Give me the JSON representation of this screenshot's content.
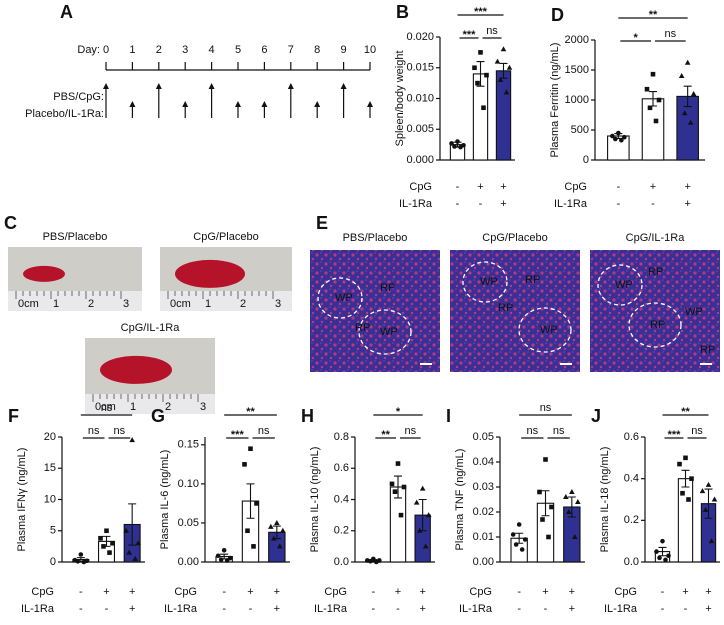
{
  "timeline": {
    "panel": "A",
    "day_label": "Day:",
    "days": [
      0,
      1,
      2,
      3,
      4,
      5,
      6,
      7,
      8,
      9,
      10
    ],
    "rows": [
      {
        "label": "PBS/CpG:",
        "days": [
          0,
          2,
          4,
          7,
          9
        ]
      },
      {
        "label": "Placebo/IL-1Ra:",
        "days": [
          1,
          3,
          5,
          6,
          8,
          10
        ]
      }
    ]
  },
  "photos": {
    "panel": "C",
    "ruler": [
      "0cm",
      "1",
      "2",
      "3"
    ],
    "captions": [
      "PBS/Placebo",
      "CpG/Placebo",
      "CpG/IL-1Ra"
    ]
  },
  "histology": {
    "panel": "E",
    "captions": [
      "PBS/Placebo",
      "CpG/Placebo",
      "CpG/IL-1Ra"
    ],
    "labels": [
      [
        "WP",
        "RP",
        "RP",
        "WP"
      ],
      [
        "WP",
        "RP",
        "RP",
        "WP"
      ],
      [
        "WP",
        "RP",
        "WP",
        "RP",
        "RP"
      ]
    ]
  },
  "chart_data": [
    {
      "type": "bar",
      "panel": "B",
      "ylabel": "Spleen/body weight",
      "ylim": [
        0,
        0.02
      ],
      "yticks": [
        {
          "value": 0,
          "label": "0.000"
        },
        {
          "value": 0.005,
          "label": "0.005"
        },
        {
          "value": 0.01,
          "label": "0.010"
        },
        {
          "value": 0.015,
          "label": "0.015"
        },
        {
          "value": 0.02,
          "label": "0.020"
        }
      ],
      "values": [
        0.0025,
        0.014,
        0.0145
      ],
      "errors": [
        0.0004,
        0.002,
        0.0012
      ],
      "points": [
        [
          0.003,
          0.0027,
          0.0024,
          0.0022,
          0.0021
        ],
        [
          0.0175,
          0.015,
          0.0138,
          0.0125,
          0.0085
        ],
        [
          0.018,
          0.016,
          0.015,
          0.013,
          0.011
        ]
      ],
      "colors": [
        "#ffffff",
        "#ffffff",
        "#2e3192"
      ],
      "rows": [
        {
          "label": "CpG",
          "signs": [
            "-",
            "+",
            "+"
          ]
        },
        {
          "label": "IL-1Ra",
          "signs": [
            "-",
            "-",
            "+"
          ]
        }
      ],
      "brackets": [
        {
          "from": 0,
          "to": 2,
          "label": "***"
        },
        {
          "from": 0,
          "to": 1,
          "label": "***"
        },
        {
          "from": 1,
          "to": 2,
          "label": "ns"
        }
      ]
    },
    {
      "type": "bar",
      "panel": "D",
      "ylabel": "Plasma Ferritin (ng/mL)",
      "ylim": [
        0,
        2000
      ],
      "yticks": [
        0,
        500,
        1000,
        1500,
        2000
      ],
      "values": [
        400,
        1020,
        1060
      ],
      "errors": [
        40,
        120,
        170
      ],
      "points": [
        [
          450,
          400,
          380,
          350,
          330
        ],
        [
          1430,
          1180,
          1000,
          870,
          650
        ],
        [
          1620,
          1400,
          1100,
          780,
          620
        ]
      ],
      "colors": [
        "#ffffff",
        "#ffffff",
        "#2e3192"
      ],
      "rows": [
        {
          "label": "CpG",
          "signs": [
            "-",
            "+",
            "+"
          ]
        },
        {
          "label": "IL-1Ra",
          "signs": [
            "-",
            "-",
            "+"
          ]
        }
      ],
      "brackets": [
        {
          "from": 0,
          "to": 2,
          "label": "**"
        },
        {
          "from": 0,
          "to": 1,
          "label": "*"
        },
        {
          "from": 1,
          "to": 2,
          "label": "ns"
        }
      ]
    },
    {
      "type": "bar",
      "panel": "F",
      "ylabel": "Plasma IFNγ (ng/mL)",
      "ylim": [
        0,
        20
      ],
      "yticks": [
        0,
        5,
        10,
        15,
        20
      ],
      "values": [
        0.4,
        3.3,
        6
      ],
      "errors": [
        0.3,
        0.8,
        3.3
      ],
      "points": [
        [
          1.2,
          0.3,
          0.2,
          0.1,
          0
        ],
        [
          5,
          3.8,
          3,
          2.5,
          1.5
        ],
        [
          19.5,
          5,
          3,
          1.5,
          0.5
        ]
      ],
      "colors": [
        "#ffffff",
        "#ffffff",
        "#2e3192"
      ],
      "rows": [
        {
          "label": "CpG",
          "signs": [
            "-",
            "+",
            "+"
          ]
        },
        {
          "label": "IL-1Ra",
          "signs": [
            "-",
            "-",
            "+"
          ]
        }
      ],
      "brackets": [
        {
          "from": 0,
          "to": 2,
          "label": "ns"
        },
        {
          "from": 0,
          "to": 1,
          "label": "ns"
        },
        {
          "from": 1,
          "to": 2,
          "label": "ns"
        }
      ]
    },
    {
      "type": "bar",
      "panel": "G",
      "ylabel": "Plasma IL-6 (ng/mL)",
      "ylim": [
        0,
        0.16
      ],
      "yticks": [
        {
          "value": 0,
          "label": "0.00"
        },
        {
          "value": 0.05,
          "label": "0.05"
        },
        {
          "value": 0.1,
          "label": "0.10"
        },
        {
          "value": 0.15,
          "label": "0.15"
        }
      ],
      "values": [
        0.007,
        0.078,
        0.038
      ],
      "errors": [
        0.003,
        0.022,
        0.008
      ],
      "points": [
        [
          0.015,
          0.008,
          0.005,
          0.003,
          0.002
        ],
        [
          0.145,
          0.125,
          0.075,
          0.04,
          0.02
        ],
        [
          0.05,
          0.045,
          0.04,
          0.03,
          0.02
        ]
      ],
      "colors": [
        "#ffffff",
        "#ffffff",
        "#2e3192"
      ],
      "rows": [
        {
          "label": "CpG",
          "signs": [
            "-",
            "+",
            "+"
          ]
        },
        {
          "label": "IL-1Ra",
          "signs": [
            "-",
            "-",
            "+"
          ]
        }
      ],
      "brackets": [
        {
          "from": 0,
          "to": 2,
          "label": "**"
        },
        {
          "from": 0,
          "to": 1,
          "label": "***"
        },
        {
          "from": 1,
          "to": 2,
          "label": "ns"
        }
      ]
    },
    {
      "type": "bar",
      "panel": "H",
      "ylabel": "Plasma IL-10 (ng/mL)",
      "ylim": [
        0,
        0.8
      ],
      "yticks": [
        {
          "value": 0,
          "label": "0.0"
        },
        {
          "value": 0.2,
          "label": "0.2"
        },
        {
          "value": 0.4,
          "label": "0.4"
        },
        {
          "value": 0.6,
          "label": "0.6"
        },
        {
          "value": 0.8,
          "label": "0.8"
        }
      ],
      "values": [
        0.01,
        0.48,
        0.3
      ],
      "errors": [
        0.005,
        0.07,
        0.1
      ],
      "points": [
        [
          0.02,
          0.01,
          0.01,
          0.005,
          0
        ],
        [
          0.63,
          0.5,
          0.48,
          0.45,
          0.3
        ],
        [
          0.47,
          0.38,
          0.3,
          0.2,
          0.1
        ]
      ],
      "colors": [
        "#ffffff",
        "#ffffff",
        "#2e3192"
      ],
      "rows": [
        {
          "label": "CpG",
          "signs": [
            "-",
            "+",
            "+"
          ]
        },
        {
          "label": "IL-1Ra",
          "signs": [
            "-",
            "-",
            "+"
          ]
        }
      ],
      "brackets": [
        {
          "from": 0,
          "to": 2,
          "label": "*"
        },
        {
          "from": 0,
          "to": 1,
          "label": "**"
        },
        {
          "from": 1,
          "to": 2,
          "label": "ns"
        }
      ]
    },
    {
      "type": "bar",
      "panel": "I",
      "ylabel": "Plasma TNF (ng/mL)",
      "ylim": [
        0,
        0.05
      ],
      "yticks": [
        {
          "value": 0,
          "label": "0.00"
        },
        {
          "value": 0.01,
          "label": "0.01"
        },
        {
          "value": 0.02,
          "label": "0.02"
        },
        {
          "value": 0.03,
          "label": "0.03"
        },
        {
          "value": 0.04,
          "label": "0.04"
        },
        {
          "value": 0.05,
          "label": "0.05"
        }
      ],
      "values": [
        0.0095,
        0.0235,
        0.022
      ],
      "errors": [
        0.002,
        0.005,
        0.004
      ],
      "points": [
        [
          0.015,
          0.011,
          0.009,
          0.007,
          0.005
        ],
        [
          0.041,
          0.028,
          0.022,
          0.017,
          0.01
        ],
        [
          0.028,
          0.026,
          0.024,
          0.02,
          0.01
        ]
      ],
      "colors": [
        "#ffffff",
        "#ffffff",
        "#2e3192"
      ],
      "rows": [
        {
          "label": "CpG",
          "signs": [
            "-",
            "+",
            "+"
          ]
        },
        {
          "label": "IL-1Ra",
          "signs": [
            "-",
            "-",
            "+"
          ]
        }
      ],
      "brackets": [
        {
          "from": 0,
          "to": 2,
          "label": "ns"
        },
        {
          "from": 0,
          "to": 1,
          "label": "ns"
        },
        {
          "from": 1,
          "to": 2,
          "label": "ns"
        }
      ]
    },
    {
      "type": "bar",
      "panel": "J",
      "ylabel": "Plasma IL-18 (ng/mL)",
      "ylim": [
        0,
        0.6
      ],
      "yticks": [
        {
          "value": 0,
          "label": "0.0"
        },
        {
          "value": 0.2,
          "label": "0.2"
        },
        {
          "value": 0.4,
          "label": "0.4"
        },
        {
          "value": 0.6,
          "label": "0.6"
        }
      ],
      "values": [
        0.05,
        0.4,
        0.28
      ],
      "errors": [
        0.02,
        0.04,
        0.07
      ],
      "points": [
        [
          0.1,
          0.05,
          0.03,
          0.02,
          0.01
        ],
        [
          0.5,
          0.47,
          0.4,
          0.33,
          0.3
        ],
        [
          0.37,
          0.34,
          0.3,
          0.25,
          0.1
        ]
      ],
      "colors": [
        "#ffffff",
        "#ffffff",
        "#2e3192"
      ],
      "rows": [
        {
          "label": "CpG",
          "signs": [
            "-",
            "+",
            "+"
          ]
        },
        {
          "label": "IL-1Ra",
          "signs": [
            "-",
            "-",
            "+"
          ]
        }
      ],
      "brackets": [
        {
          "from": 0,
          "to": 2,
          "label": "**"
        },
        {
          "from": 0,
          "to": 1,
          "label": "***"
        },
        {
          "from": 1,
          "to": 2,
          "label": "ns"
        }
      ]
    }
  ]
}
